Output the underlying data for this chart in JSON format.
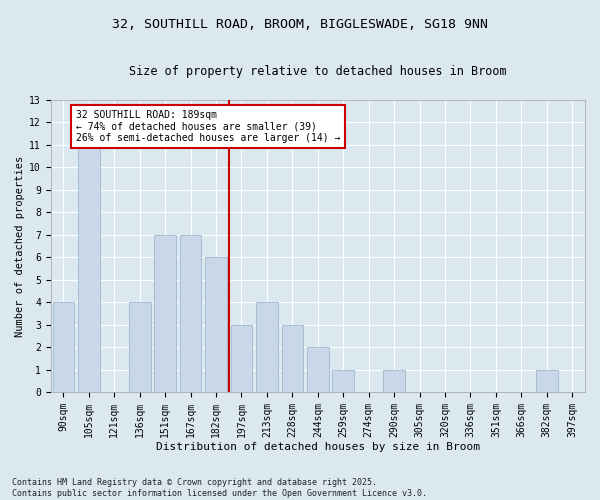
{
  "title1": "32, SOUTHILL ROAD, BROOM, BIGGLESWADE, SG18 9NN",
  "title2": "Size of property relative to detached houses in Broom",
  "xlabel": "Distribution of detached houses by size in Broom",
  "ylabel": "Number of detached properties",
  "categories": [
    "90sqm",
    "105sqm",
    "121sqm",
    "136sqm",
    "151sqm",
    "167sqm",
    "182sqm",
    "197sqm",
    "213sqm",
    "228sqm",
    "244sqm",
    "259sqm",
    "274sqm",
    "290sqm",
    "305sqm",
    "320sqm",
    "336sqm",
    "351sqm",
    "366sqm",
    "382sqm",
    "397sqm"
  ],
  "values": [
    4,
    11,
    0,
    4,
    7,
    7,
    6,
    3,
    4,
    3,
    2,
    1,
    0,
    1,
    0,
    0,
    0,
    0,
    0,
    1,
    0
  ],
  "bar_color": "#c8d8e8",
  "bar_edge_color": "#a0b8cc",
  "vline_x": 6.5,
  "vline_color": "#cc0000",
  "annotation_text": "32 SOUTHILL ROAD: 189sqm\n← 74% of detached houses are smaller (39)\n26% of semi-detached houses are larger (14) →",
  "annotation_box_color": "#ffffff",
  "annotation_box_edge": "#cc0000",
  "ylim": [
    0,
    13
  ],
  "yticks": [
    0,
    1,
    2,
    3,
    4,
    5,
    6,
    7,
    8,
    9,
    10,
    11,
    12,
    13
  ],
  "footer": "Contains HM Land Registry data © Crown copyright and database right 2025.\nContains public sector information licensed under the Open Government Licence v3.0.",
  "background_color": "#dce8f0",
  "plot_bg_color": "#dce8f0",
  "grid_color": "#ffffff",
  "title1_fontsize": 9.5,
  "title2_fontsize": 8.5,
  "xlabel_fontsize": 8,
  "ylabel_fontsize": 7.5,
  "tick_fontsize": 7,
  "annot_fontsize": 7,
  "footer_fontsize": 6
}
